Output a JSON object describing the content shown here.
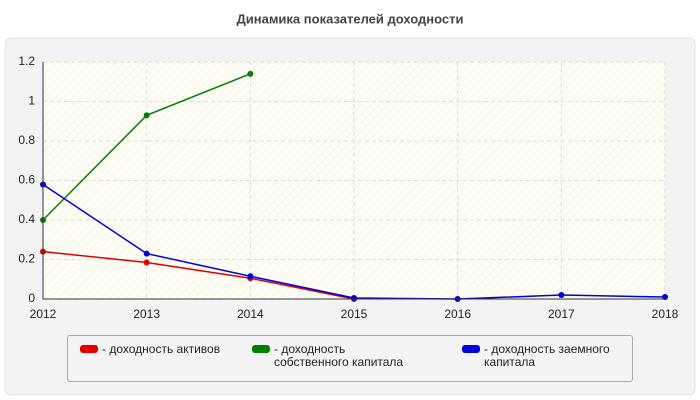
{
  "chart_data": {
    "type": "line",
    "title": "Динамика показателей доходности",
    "x": [
      2012,
      2013,
      2014,
      2015,
      2016,
      2017,
      2018
    ],
    "series": [
      {
        "name": "- доходность активов",
        "color": "#e00000",
        "values": [
          0.24,
          0.185,
          0.105,
          0.0,
          null,
          null,
          null
        ]
      },
      {
        "name": "- доходность собственного капитала",
        "color": "#008000",
        "values": [
          0.4,
          0.93,
          1.14,
          null,
          null,
          null,
          null
        ]
      },
      {
        "name": "- доходность заемного капитала",
        "color": "#0000e0",
        "values": [
          0.58,
          0.23,
          0.115,
          0.005,
          0.0,
          0.02,
          0.01
        ]
      }
    ],
    "xlim": [
      2012,
      2018
    ],
    "xticks": [
      2012,
      2013,
      2014,
      2015,
      2016,
      2017,
      2018
    ],
    "ylim": [
      0,
      1.2
    ],
    "yticks": [
      0,
      0.2,
      0.4,
      0.6,
      0.8,
      1,
      1.2
    ],
    "grid": true
  }
}
